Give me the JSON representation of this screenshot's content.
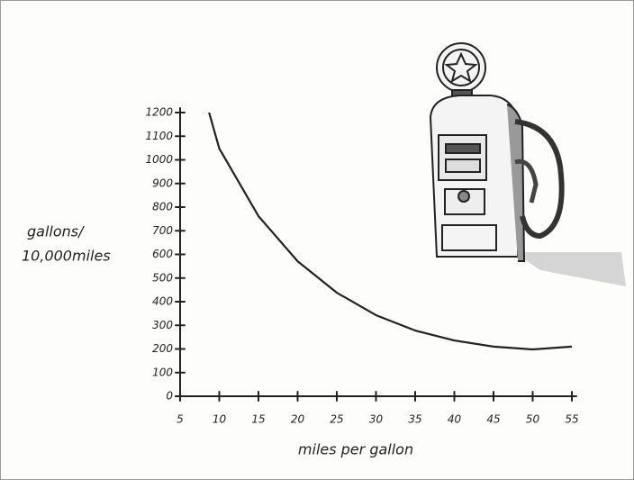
{
  "chart_data": {
    "type": "line",
    "xlabel": "miles per gallon",
    "ylabel": [
      "gallons/",
      "10,000miles"
    ],
    "x": [
      8.7,
      10,
      15,
      20,
      25,
      30,
      35,
      40,
      45,
      50,
      55
    ],
    "series": [
      {
        "color": "#222222",
        "values": [
          1200,
          1048,
          762,
          571,
          438,
          343,
          278,
          236,
          210,
          198,
          210
        ]
      }
    ],
    "xlim": [
      5,
      55
    ],
    "ylim": [
      0,
      1200
    ],
    "xticks": [
      5,
      10,
      15,
      20,
      25,
      30,
      35,
      40,
      45,
      50,
      55
    ],
    "yticks": [
      0,
      100,
      200,
      300,
      400,
      500,
      600,
      700,
      800,
      900,
      1000,
      1100,
      1200
    ]
  }
}
